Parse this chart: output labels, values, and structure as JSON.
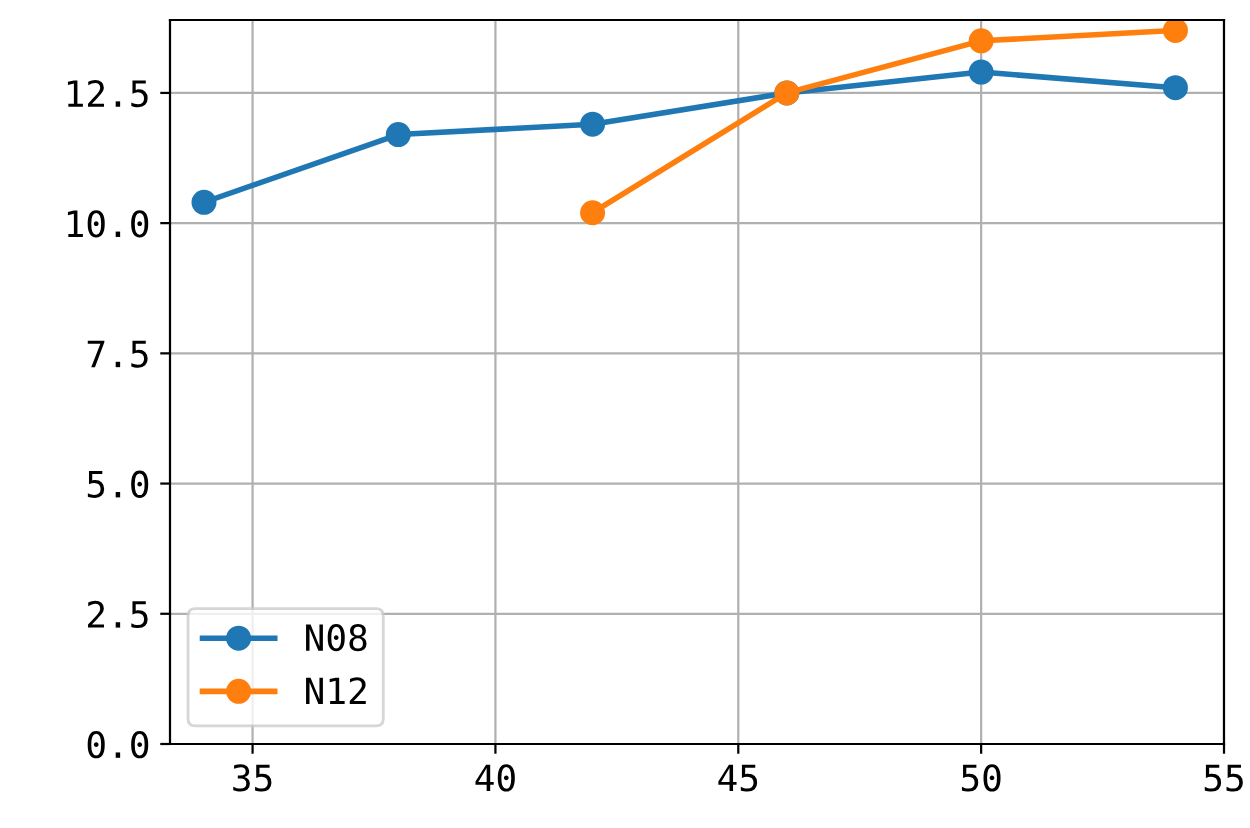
{
  "chart_data": {
    "type": "line",
    "series": [
      {
        "name": "N08",
        "color": "#1f77b4",
        "x": [
          34,
          38,
          42,
          46,
          50,
          54
        ],
        "values": [
          10.4,
          11.7,
          11.9,
          12.5,
          12.9,
          12.6
        ]
      },
      {
        "name": "N12",
        "color": "#ff7f0e",
        "x": [
          42,
          46,
          50,
          54
        ],
        "values": [
          10.2,
          12.5,
          13.5,
          13.7
        ]
      }
    ],
    "xlim": [
      33.3,
      55
    ],
    "xticks": [
      35,
      40,
      45,
      50,
      55
    ],
    "ylim": [
      0,
      13.9
    ],
    "yticks": [
      {
        "value": 0,
        "label": "0.0"
      },
      {
        "value": 2.5,
        "label": "2.5"
      },
      {
        "value": 5,
        "label": "5.0"
      },
      {
        "value": 7.5,
        "label": "7.5"
      },
      {
        "value": 10,
        "label": "10.0"
      },
      {
        "value": 12.5,
        "label": "12.5"
      }
    ],
    "grid": true,
    "legend": "bottom left",
    "marker": "circle",
    "line_style": "solid"
  }
}
